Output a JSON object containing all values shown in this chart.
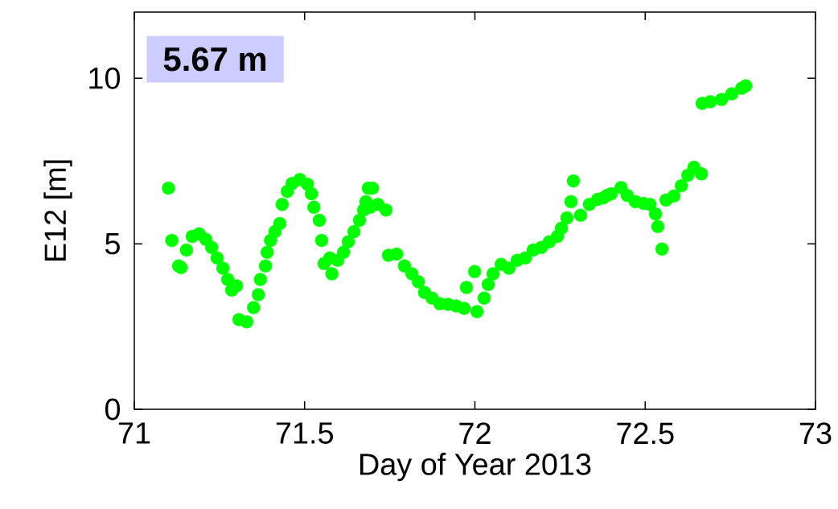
{
  "chart_data": {
    "type": "scatter",
    "xlabel": "Day of Year 2013",
    "ylabel": "E12 [m]",
    "annotations": [
      "5.67 m"
    ],
    "xlim": [
      71,
      73
    ],
    "ylim": [
      0,
      12
    ],
    "xticks": [
      71,
      71.5,
      72,
      72.5,
      73
    ],
    "yticks": [
      0,
      5,
      10
    ],
    "marker": "circle",
    "grid": false,
    "series": [
      {
        "color": "#00ff00",
        "x": [
          71.1,
          71.11,
          71.13,
          71.137,
          71.153,
          71.17,
          71.19,
          71.21,
          71.227,
          71.243,
          71.26,
          71.274,
          71.286,
          71.3,
          71.307,
          71.33,
          71.35,
          71.364,
          71.37,
          71.385,
          71.39,
          71.4,
          71.413,
          71.427,
          71.434,
          71.449,
          71.463,
          71.486,
          71.508,
          71.52,
          71.527,
          71.543,
          71.55,
          71.557,
          71.574,
          71.58,
          71.597,
          71.614,
          71.628,
          71.645,
          71.661,
          71.673,
          71.68,
          71.687,
          71.699,
          71.692,
          71.715,
          71.739,
          71.746,
          71.77,
          71.793,
          71.815,
          71.834,
          71.852,
          71.874,
          71.897,
          71.921,
          71.945,
          71.968,
          71.975,
          71.999,
          72.006,
          72.027,
          72.039,
          72.053,
          72.077,
          72.1,
          72.124,
          72.148,
          72.171,
          72.195,
          72.218,
          72.242,
          72.254,
          72.27,
          72.282,
          72.289,
          72.31,
          72.336,
          72.36,
          72.377,
          72.388,
          72.4,
          72.429,
          72.447,
          72.471,
          72.495,
          72.514,
          72.53,
          72.537,
          72.549,
          72.561,
          72.584,
          72.606,
          72.625,
          72.643,
          72.665,
          72.667,
          72.691,
          72.724,
          72.754,
          72.783,
          72.795
        ],
        "values": [
          6.68,
          5.1,
          4.33,
          4.28,
          4.81,
          5.22,
          5.3,
          5.13,
          4.89,
          4.57,
          4.26,
          3.92,
          3.6,
          3.73,
          2.71,
          2.64,
          3.07,
          3.46,
          3.92,
          4.33,
          4.74,
          5.1,
          5.37,
          5.61,
          6.19,
          6.58,
          6.82,
          6.94,
          6.8,
          6.51,
          6.1,
          5.71,
          5.1,
          4.4,
          4.57,
          4.09,
          4.5,
          4.74,
          5.06,
          5.37,
          5.71,
          6.02,
          6.27,
          6.68,
          6.68,
          6.1,
          6.19,
          6.02,
          4.65,
          4.69,
          4.33,
          4.09,
          3.85,
          3.53,
          3.36,
          3.19,
          3.17,
          3.12,
          3.05,
          3.68,
          4.16,
          2.95,
          3.36,
          3.77,
          4.09,
          4.38,
          4.26,
          4.5,
          4.57,
          4.81,
          4.89,
          5.06,
          5.22,
          5.47,
          5.78,
          6.27,
          6.9,
          5.86,
          6.19,
          6.34,
          6.39,
          6.46,
          6.51,
          6.7,
          6.46,
          6.27,
          6.22,
          6.19,
          5.9,
          5.52,
          4.84,
          6.32,
          6.44,
          6.75,
          7.07,
          7.31,
          7.11,
          9.24,
          9.29,
          9.36,
          9.53,
          9.7,
          9.77
        ]
      }
    ]
  }
}
